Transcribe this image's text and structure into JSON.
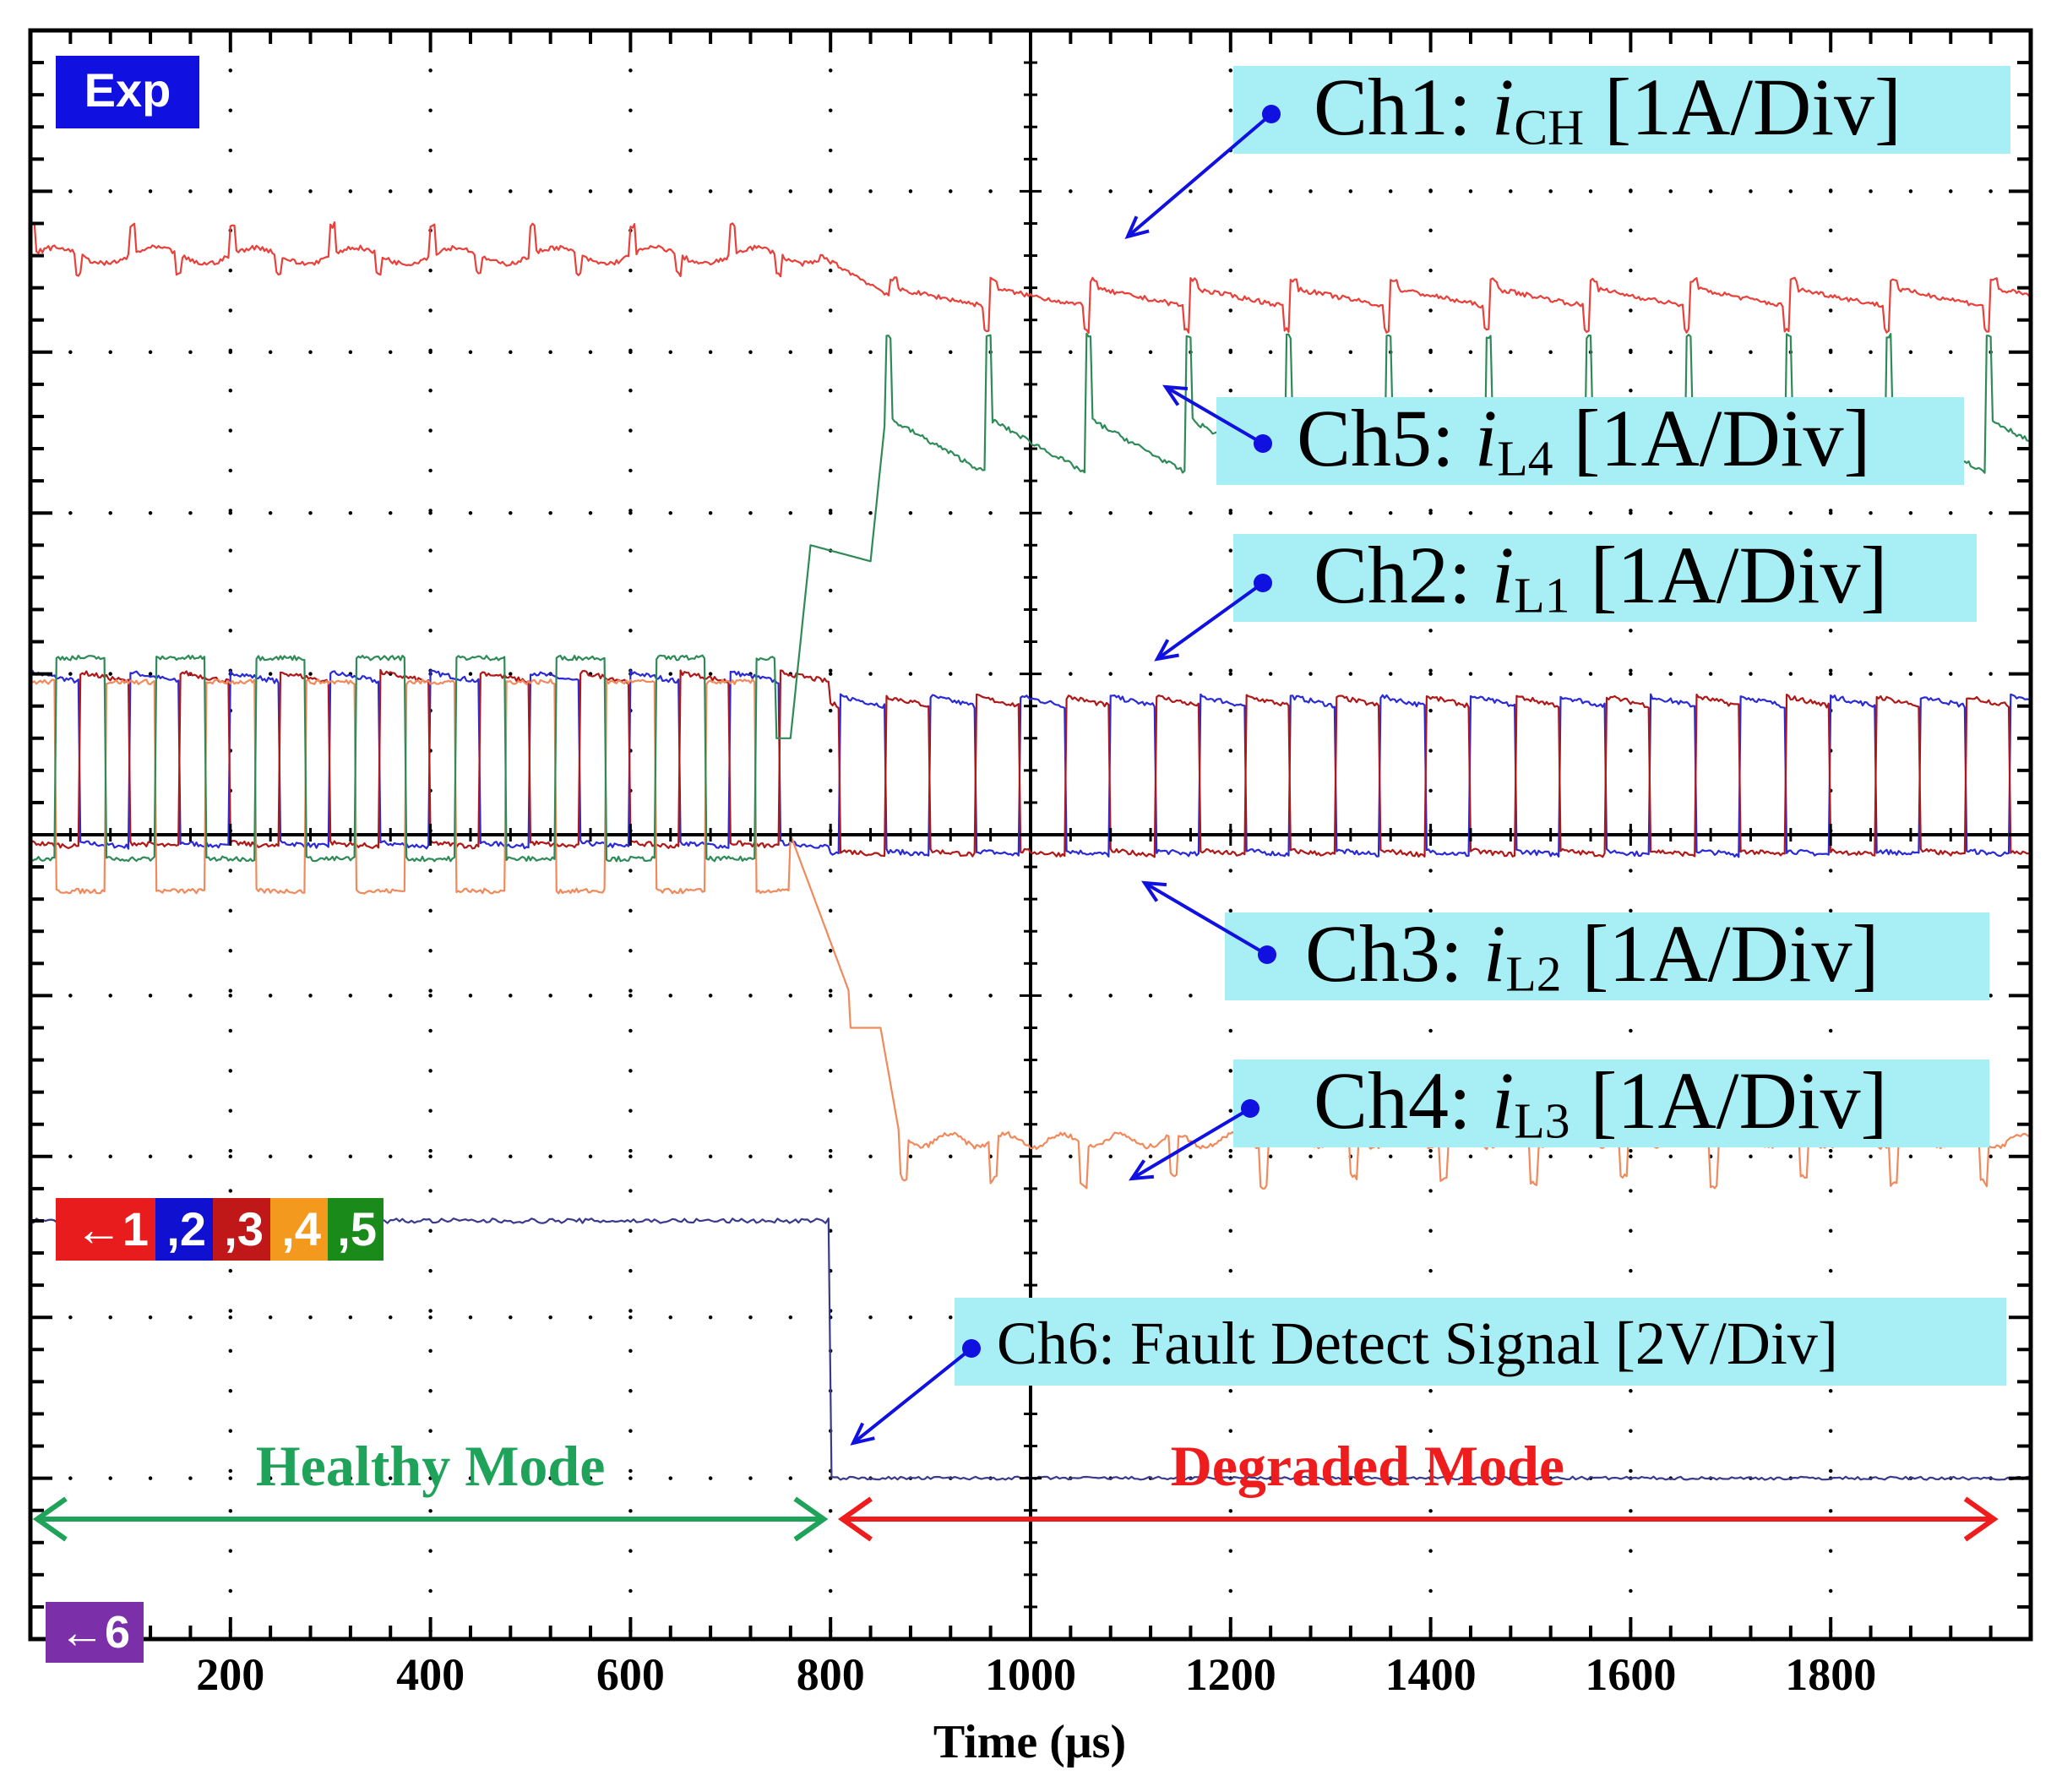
{
  "chart_data": {
    "type": "line",
    "title": "",
    "xlabel": "Time (μs)",
    "ylabel": "",
    "xlim": [
      0,
      2000
    ],
    "ylim": [
      -5,
      5
    ],
    "x_ticks": [
      200,
      400,
      600,
      800,
      1000,
      1200,
      1400,
      1600,
      1800
    ],
    "grid": "dotted",
    "fault_time": 800,
    "badge": "Exp",
    "channel_marker_main": {
      "arrow": "←",
      "items": [
        "1",
        ",2",
        ",3",
        ",4",
        ",5"
      ]
    },
    "channel_marker_ch6": {
      "arrow": "←",
      "label": "6"
    },
    "series": [
      {
        "name": "Ch1",
        "label_main": "Ch1: ",
        "var": "i",
        "sub": "CH",
        "unit": " [1A/Div]",
        "color": "#e8403a",
        "healthy_level_div": 3.6,
        "degraded_level_div": 3.4
      },
      {
        "name": "Ch2",
        "label_main": "Ch2: ",
        "var": "i",
        "sub": "L1",
        "unit": " [1A/Div]",
        "color": "#2a2ad6",
        "healthy_high_div": 0.95,
        "healthy_low_div": -0.05,
        "degraded_high_div": 0.8,
        "degraded_low_div": -0.1
      },
      {
        "name": "Ch3",
        "label_main": "Ch3: ",
        "var": "i",
        "sub": "L2",
        "unit": " [1A/Div]",
        "color": "#b01818",
        "healthy_high_div": 0.95,
        "healthy_low_div": -0.05,
        "degraded_high_div": 0.8,
        "degraded_low_div": -0.1
      },
      {
        "name": "Ch4",
        "label_main": "Ch4: ",
        "var": "i",
        "sub": "L3",
        "unit": " [1A/Div]",
        "color": "#f08a5c",
        "healthy_high_div": 0.95,
        "healthy_low_div": -0.35,
        "degraded_level_div": -1.9
      },
      {
        "name": "Ch5",
        "label_main": "Ch5: ",
        "var": "i",
        "sub": "L4",
        "unit": " [1A/Div]",
        "color": "#2e8b57",
        "healthy_high_div": 1.1,
        "healthy_low_div": -0.15,
        "degraded_level_div": 2.45
      },
      {
        "name": "Ch6",
        "label_main": "Ch6: Fault Detect Signal [2V/Div]",
        "color": "#3a3a8c",
        "healthy_level_div": -2.4,
        "degraded_level_div": -4.0
      }
    ],
    "modes": [
      {
        "name": "Healthy Mode",
        "from": 0,
        "to": 800,
        "color": "#1fa35a"
      },
      {
        "name": "Degraded Mode",
        "from": 800,
        "to": 1970,
        "color": "#ee1c1c"
      }
    ]
  }
}
